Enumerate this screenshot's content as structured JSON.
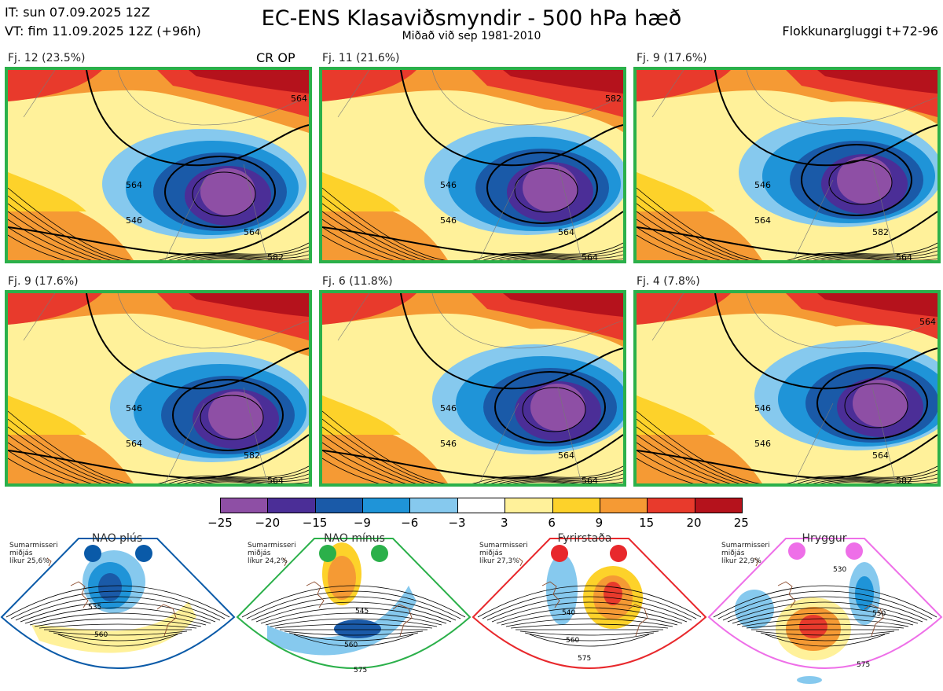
{
  "header": {
    "it": "IT: sun 07.09.2025 12Z",
    "vt": "VT: fim 11.09.2025 12Z  (+96h)",
    "title": "EC-ENS Klasaviðsmyndir - 500 hPa hæð",
    "subtitle": "Miðað við sep 1981-2010",
    "window": "Flokkunargluggi t+72-96"
  },
  "panels": [
    {
      "label": "Fj. 12 (23.5%)",
      "labels_shown": [
        "564",
        "546",
        "564",
        "582",
        "564"
      ]
    },
    {
      "label": "Fj. 11 (21.6%)",
      "labels_shown": [
        "546",
        "546",
        "564",
        "564",
        "582"
      ]
    },
    {
      "label": "Fj. 9 (17.6%)",
      "labels_shown": [
        "546",
        "564",
        "582",
        "564"
      ]
    },
    {
      "label": "Fj. 9 (17.6%)",
      "labels_shown": [
        "546",
        "564",
        "582",
        "564"
      ]
    },
    {
      "label": "Fj. 6 (11.8%)",
      "labels_shown": [
        "546",
        "546",
        "564",
        "564"
      ]
    },
    {
      "label": "Fj. 4 (7.8%)",
      "labels_shown": [
        "546",
        "546",
        "564",
        "582",
        "564"
      ]
    }
  ],
  "op_tag": "CR OP",
  "colorbar": {
    "ticks": [
      "−25",
      "−20",
      "−15",
      "−9",
      "−6",
      "−3",
      "3",
      "6",
      "9",
      "15",
      "20",
      "25"
    ],
    "colors": [
      "#8e4fa5",
      "#4b2e97",
      "#1a5aa8",
      "#1f94d8",
      "#86c9ee",
      "#ffffff",
      "#fff19a",
      "#fdd22a",
      "#f59a34",
      "#e83a2c",
      "#b5121c"
    ]
  },
  "regimes": [
    {
      "title": "NAO plús",
      "note": [
        "Sumarmisseri",
        "miðjás",
        "líkur 25,6%"
      ],
      "color": "#0a5aa8",
      "labels": [
        "535",
        "560"
      ]
    },
    {
      "title": "NAO mínus",
      "note": [
        "Sumarmisseri",
        "miðjás",
        "líkur 24,2%"
      ],
      "color": "#2bb04a",
      "labels": [
        "545",
        "560",
        "575"
      ]
    },
    {
      "title": "Fyrirstaða",
      "note": [
        "Sumarmisseri",
        "miðjás",
        "líkur 27,3%"
      ],
      "color": "#e8282c",
      "labels": [
        "540",
        "560",
        "575"
      ]
    },
    {
      "title": "Hryggur",
      "note": [
        "Sumarmisseri",
        "miðjás",
        "líkur 22,9%"
      ],
      "color": "#ee6fe8",
      "labels": [
        "530",
        "550",
        "575"
      ]
    }
  ]
}
